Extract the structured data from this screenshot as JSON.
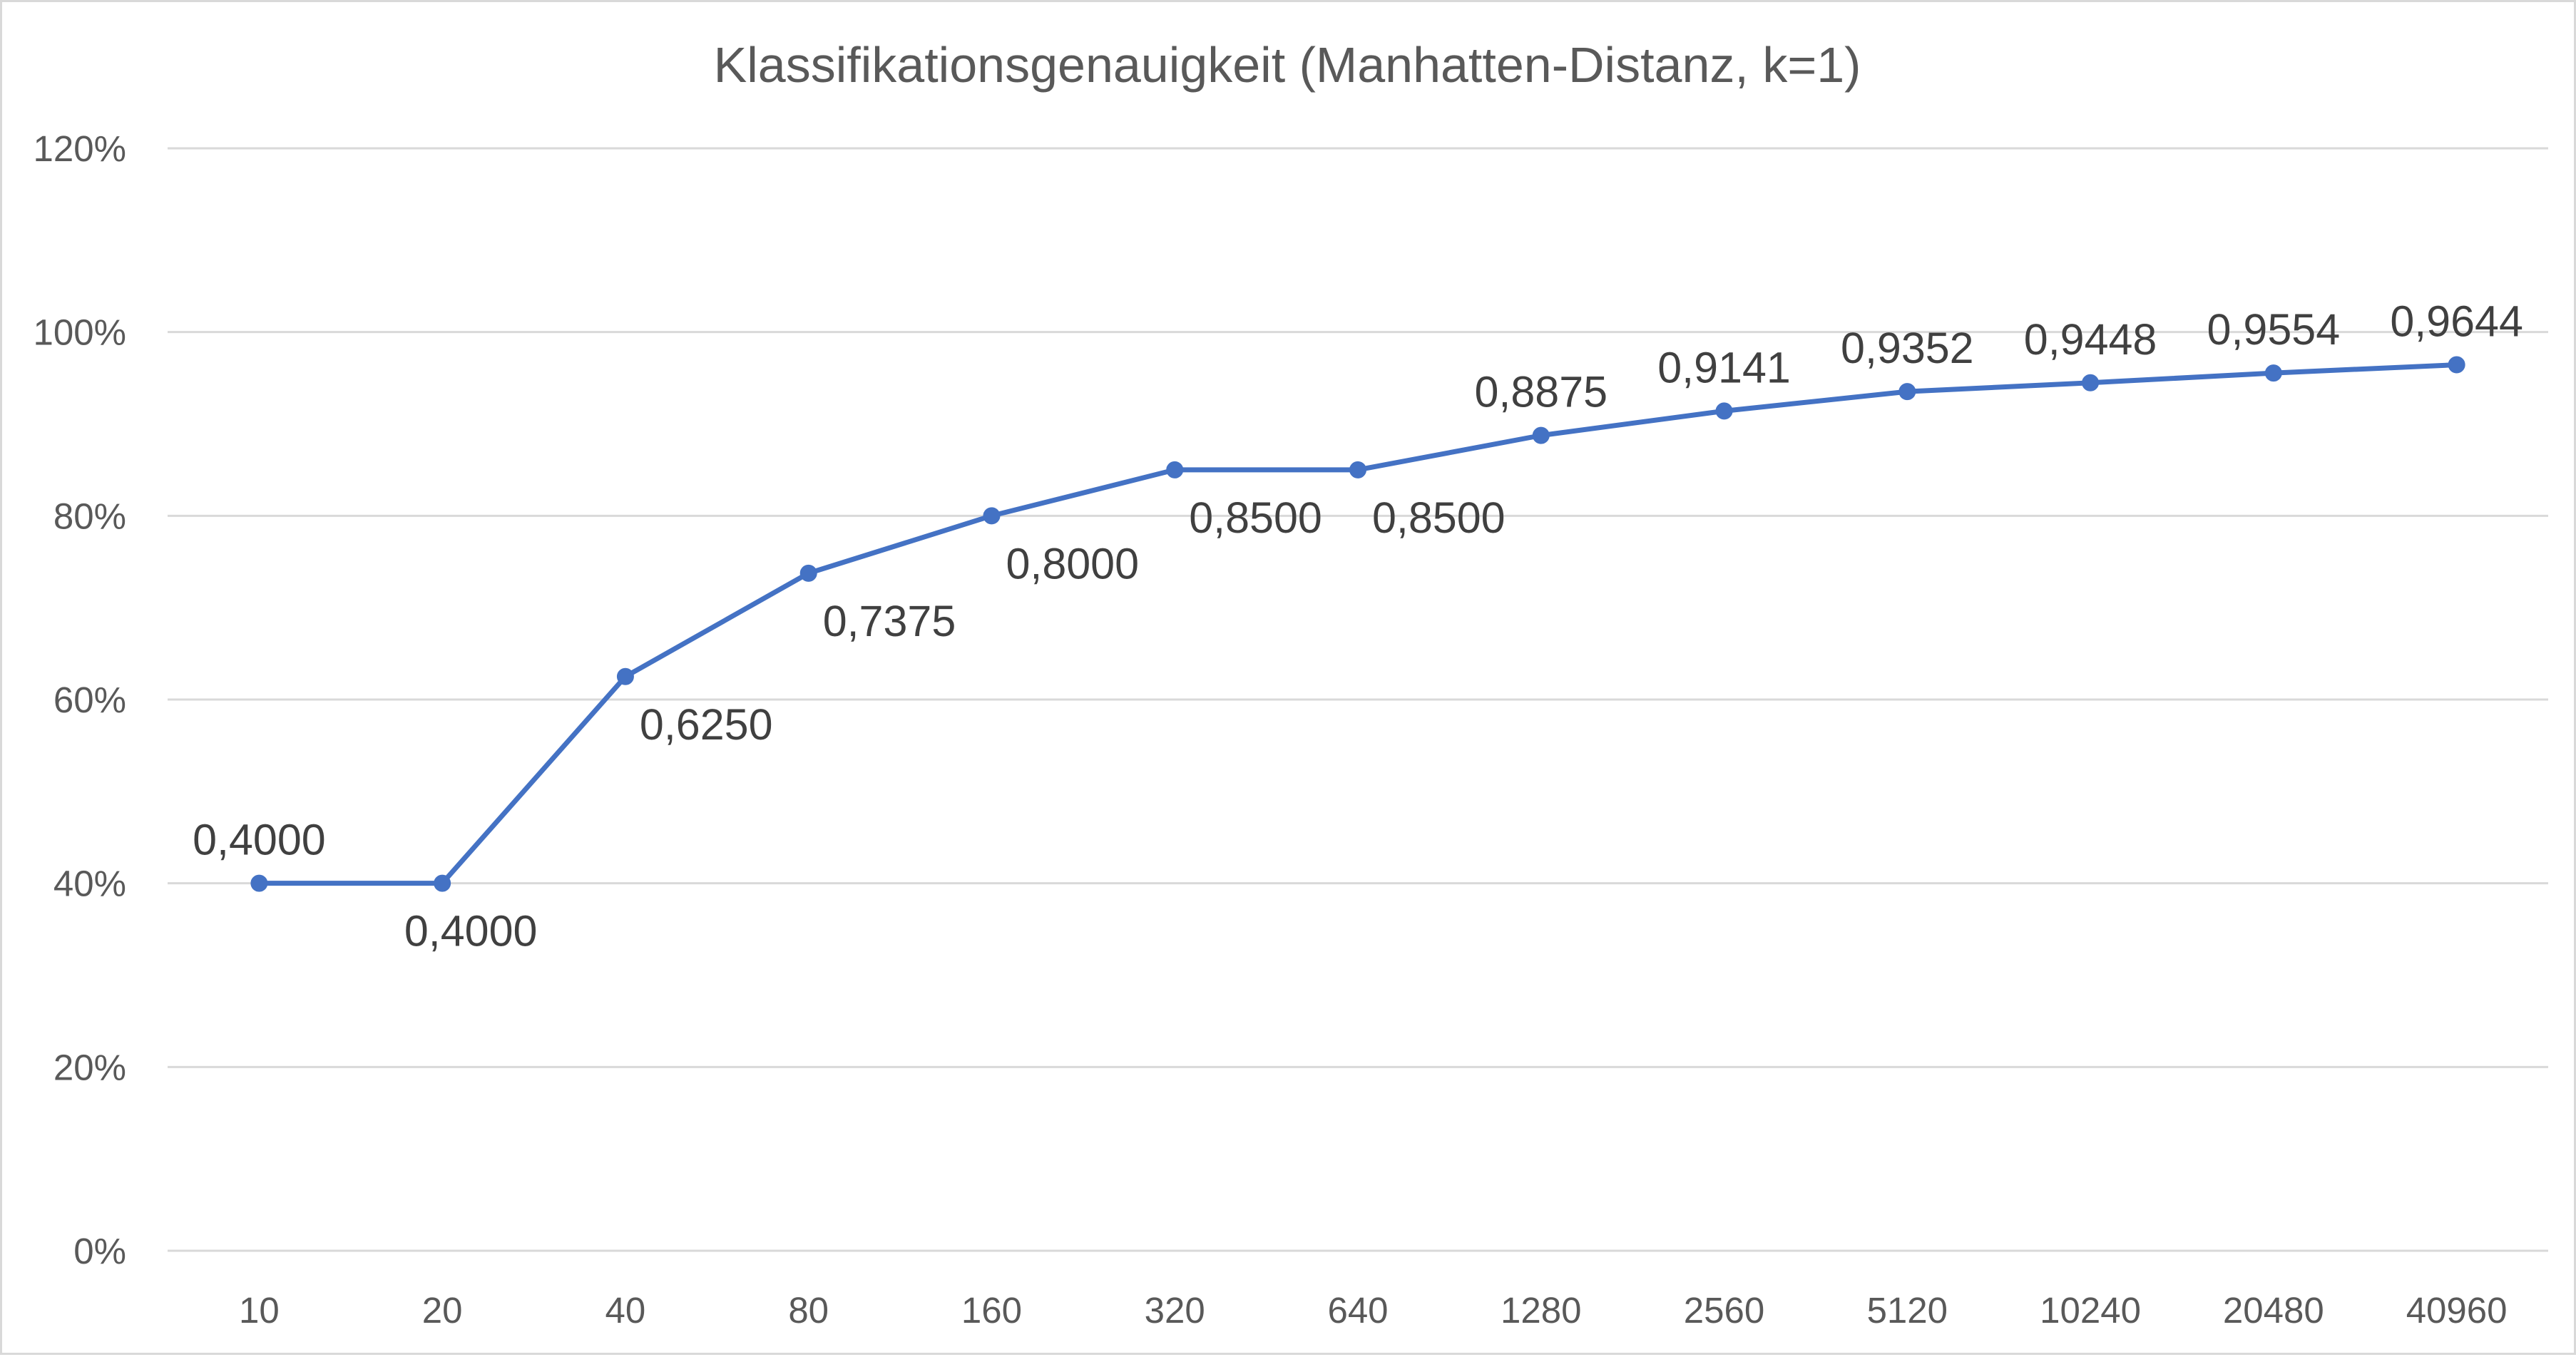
{
  "chart_data": {
    "type": "line",
    "title": "Klassifikationsgenauigkeit (Manhatten-Distanz, k=1)",
    "xlabel": "",
    "ylabel": "",
    "categories": [
      "10",
      "20",
      "40",
      "80",
      "160",
      "320",
      "640",
      "1280",
      "2560",
      "5120",
      "10240",
      "20480",
      "40960"
    ],
    "series": [
      {
        "values": [
          0.4,
          0.4,
          0.625,
          0.7375,
          0.8,
          0.85,
          0.85,
          0.8875,
          0.9141,
          0.9352,
          0.9448,
          0.9554,
          0.9644
        ],
        "data_labels": [
          "0,4000",
          "0,4000",
          "0,6250",
          "0,7375",
          "0,8000",
          "0,8500",
          "0,8500",
          "0,8875",
          "0,9141",
          "0,9352",
          "0,9448",
          "0,9554",
          "0,9644"
        ],
        "label_positions": [
          "above",
          "below",
          "below",
          "below",
          "below",
          "below",
          "below",
          "above",
          "above",
          "above",
          "above",
          "above",
          "above"
        ],
        "color": "#4472c4"
      }
    ],
    "ylim": [
      0,
      1.2
    ],
    "y_ticks": [
      0,
      0.2,
      0.4,
      0.6,
      0.8,
      1.0,
      1.2
    ],
    "y_tick_labels": [
      "0%",
      "20%",
      "40%",
      "60%",
      "80%",
      "100%",
      "120%"
    ],
    "grid": true,
    "legend": "none",
    "colors": {
      "series": "#4472c4",
      "grid": "#d9d9d9",
      "axis_text": "#595959",
      "label_text": "#404040"
    }
  }
}
